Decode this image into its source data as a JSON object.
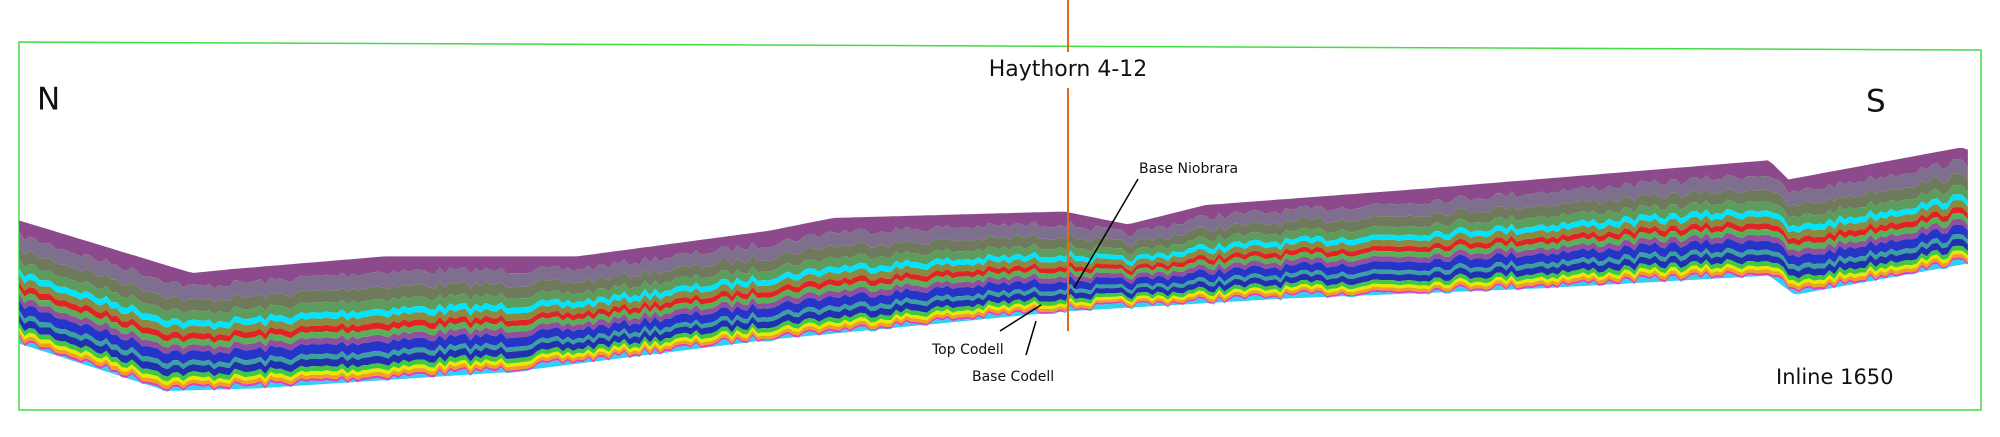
{
  "labels": {
    "north": "N",
    "south": "S",
    "well": "Haythorn 4-12",
    "base_niobrara": "Base Niobrara",
    "top_codell": "Top Codell",
    "base_codell": "Base Codell",
    "inline": "Inline 1650"
  }
}
